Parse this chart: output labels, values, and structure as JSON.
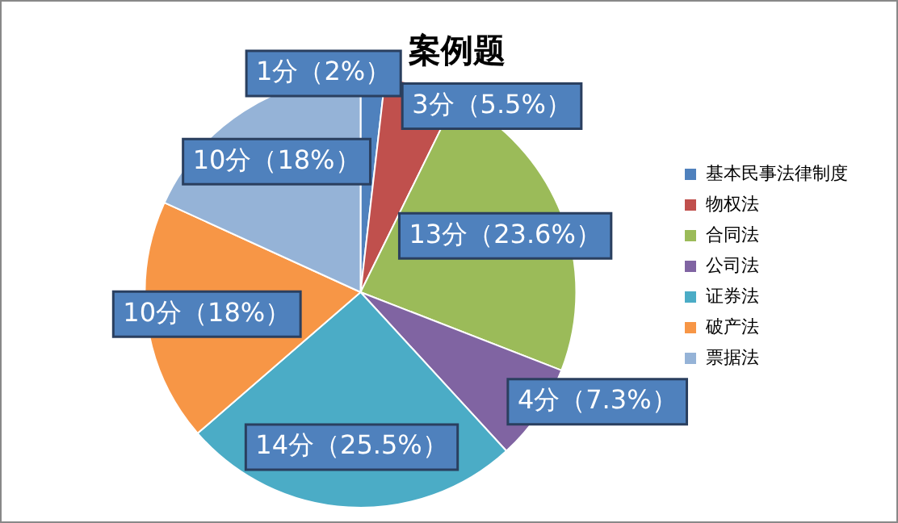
{
  "chart_data": {
    "type": "pie",
    "title": "案例题",
    "categories": [
      "基本民事法律制度",
      "物权法",
      "合同法",
      "公司法",
      "证券法",
      "破产法",
      "票据法"
    ],
    "values": [
      1,
      3,
      13,
      4,
      14,
      10,
      10
    ],
    "colors": [
      "#4f81bd",
      "#c0504d",
      "#9bbb59",
      "#8064a2",
      "#4bacc6",
      "#f79646",
      "#95b3d7"
    ],
    "value_labels": [
      "1分（2%）",
      "3分（5.5%）",
      "13分（23.6%）",
      "4分（7.3%）",
      "14分（25.5%）",
      "10分（18%）",
      "10分（18%）"
    ],
    "legend": "right"
  }
}
